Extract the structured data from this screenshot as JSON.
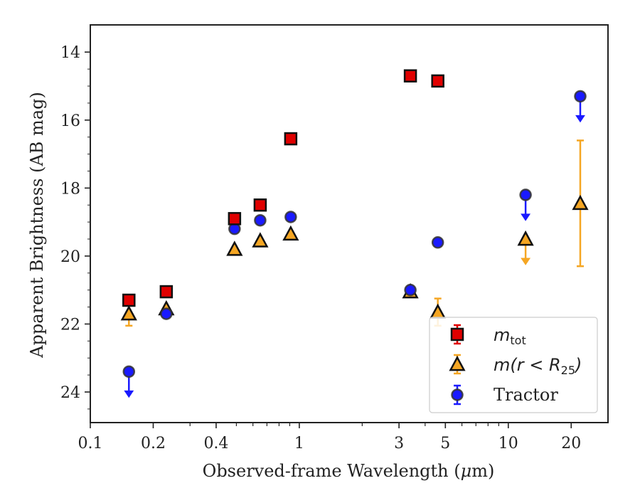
{
  "chart_data": {
    "type": "scatter",
    "xlabel_main": "Observed-frame Wavelength (",
    "xlabel_mu": "μ",
    "xlabel_end": "m)",
    "ylabel": "Apparent Brightness (AB mag)",
    "xscale": "log",
    "xlim": [
      0.1,
      30
    ],
    "ylim": [
      24.9,
      13.2
    ],
    "y_inverted": true,
    "x_ticks": [
      0.1,
      0.2,
      0.4,
      1,
      3,
      5,
      10,
      20
    ],
    "x_tick_labels": [
      "0.1",
      "0.2",
      "0.4",
      "1",
      "3",
      "5",
      "10",
      "20"
    ],
    "y_ticks": [
      14,
      16,
      18,
      20,
      22,
      24
    ],
    "y_tick_labels": [
      "14",
      "16",
      "18",
      "20",
      "22",
      "24"
    ],
    "grid": false,
    "legend_position": "bottom-right",
    "legend": {
      "mtot": {
        "base": "m",
        "sub": "tot"
      },
      "mr25": {
        "base": "m",
        "mid": "(r < R",
        "sub": "25",
        "end": ")"
      },
      "tractor": "Tractor"
    },
    "series": [
      {
        "key": "mtot",
        "marker": "square",
        "color": "#e00000",
        "points": [
          {
            "x": 0.153,
            "y": 21.3
          },
          {
            "x": 0.231,
            "y": 21.05
          },
          {
            "x": 0.49,
            "y": 18.9
          },
          {
            "x": 0.65,
            "y": 18.5
          },
          {
            "x": 0.91,
            "y": 16.55
          },
          {
            "x": 3.4,
            "y": 14.7
          },
          {
            "x": 4.6,
            "y": 14.85
          }
        ]
      },
      {
        "key": "mr25",
        "marker": "triangle",
        "color": "#f5a623",
        "points": [
          {
            "x": 0.153,
            "y": 21.7,
            "err": 0.35
          },
          {
            "x": 0.231,
            "y": 21.55
          },
          {
            "x": 0.49,
            "y": 19.8
          },
          {
            "x": 0.65,
            "y": 19.55
          },
          {
            "x": 0.91,
            "y": 19.35
          },
          {
            "x": 3.4,
            "y": 21.05
          },
          {
            "x": 4.6,
            "y": 21.65,
            "err": 0.4
          },
          {
            "x": 12.1,
            "y": 19.5,
            "upper_limit": true
          },
          {
            "x": 22.1,
            "y": 18.45,
            "err": 1.85
          }
        ]
      },
      {
        "key": "tractor",
        "marker": "circle",
        "color": "#1a1aff",
        "points": [
          {
            "x": 0.153,
            "y": 23.4,
            "upper_limit": true
          },
          {
            "x": 0.231,
            "y": 21.7
          },
          {
            "x": 0.49,
            "y": 19.2
          },
          {
            "x": 0.65,
            "y": 18.95
          },
          {
            "x": 0.91,
            "y": 18.85
          },
          {
            "x": 3.4,
            "y": 21.0
          },
          {
            "x": 4.6,
            "y": 19.6
          },
          {
            "x": 12.1,
            "y": 18.2,
            "upper_limit": true
          },
          {
            "x": 22.1,
            "y": 15.3,
            "upper_limit": true
          }
        ]
      }
    ]
  }
}
